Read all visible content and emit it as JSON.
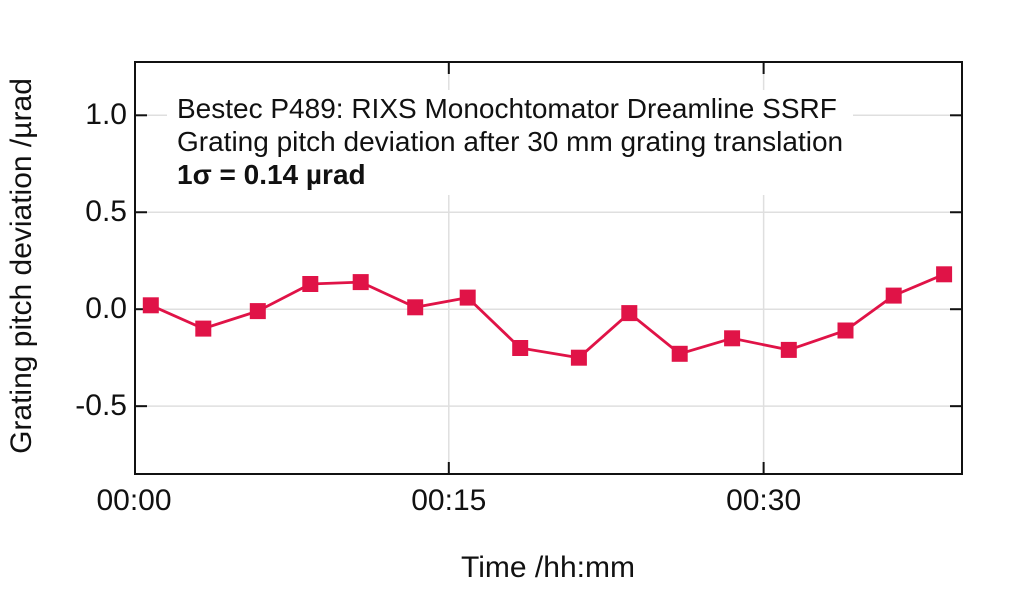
{
  "chart_data": {
    "type": "line",
    "annotation": {
      "line1": "Bestec P489: RIXS Monochtomator Dreamline SSRF",
      "line2": "Grating pitch deviation after 30 mm grating translation",
      "line3": "1σ = 0.14 µrad"
    },
    "xlabel": "Time /hh:mm",
    "ylabel": "Grating pitch deviation /µrad",
    "x_minutes": [
      0.8,
      3.3,
      5.9,
      8.4,
      10.8,
      13.4,
      15.9,
      18.4,
      21.2,
      23.6,
      26.0,
      28.5,
      31.2,
      33.9,
      36.2,
      38.6
    ],
    "y_urad": [
      0.02,
      -0.1,
      -0.01,
      0.13,
      0.14,
      0.01,
      0.06,
      -0.2,
      -0.25,
      -0.02,
      -0.23,
      -0.15,
      -0.21,
      -0.11,
      0.07,
      0.18
    ],
    "xticks": [
      {
        "value": 0,
        "label": "00:00"
      },
      {
        "value": 15,
        "label": "00:15"
      },
      {
        "value": 30,
        "label": "00:30"
      }
    ],
    "yticks": [
      {
        "value": 1.0,
        "label": "1.0"
      },
      {
        "value": 0.5,
        "label": "0.5"
      },
      {
        "value": 0.0,
        "label": "0.0"
      },
      {
        "value": -0.5,
        "label": "-0.5"
      }
    ],
    "xlim_minutes": [
      0,
      39.5
    ],
    "ylim": [
      -0.855,
      1.28
    ],
    "grid": true,
    "legend": "none",
    "marker": "filled-square",
    "colors": {
      "series": "#e01347",
      "grid": "#dfdfdf",
      "axis": "#111111",
      "text": "#111111",
      "background": "#ffffff"
    }
  }
}
